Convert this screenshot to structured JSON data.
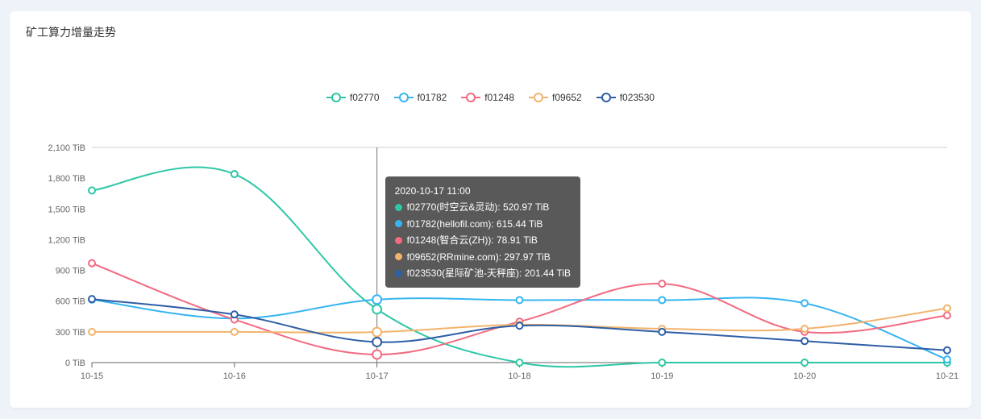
{
  "title": "矿工算力增量走势",
  "chart": {
    "type": "line",
    "background_color": "#ffffff",
    "grid_color": "#cccccc",
    "axis_text_color": "#666666",
    "y_unit": "TiB",
    "ylim": [
      0,
      2100
    ],
    "ytick_step": 300,
    "yticks": [
      "0 TiB",
      "300 TiB",
      "600 TiB",
      "900 TiB",
      "1,200 TiB",
      "1,500 TiB",
      "1,800 TiB",
      "2,100 TiB"
    ],
    "xticks": [
      "10-15",
      "10-16",
      "10-17",
      "10-18",
      "10-19",
      "10-20",
      "10-21"
    ],
    "marker_style": "ring",
    "marker_radius": 4,
    "line_width": 2,
    "series": [
      {
        "id": "f02770",
        "color": "#2ec7a6",
        "values": [
          1680,
          1840,
          521,
          0,
          0,
          0,
          0
        ]
      },
      {
        "id": "f01782",
        "color": "#36b5f0",
        "values": [
          615,
          430,
          615,
          610,
          610,
          580,
          30
        ]
      },
      {
        "id": "f01248",
        "color": "#f26b82",
        "values": [
          970,
          420,
          79,
          400,
          770,
          300,
          460
        ]
      },
      {
        "id": "f09652",
        "color": "#f2b36b",
        "values": [
          300,
          300,
          298,
          370,
          330,
          330,
          530
        ]
      },
      {
        "id": "f023530",
        "color": "#2e5ea6",
        "values": [
          620,
          470,
          201,
          360,
          300,
          210,
          120
        ]
      }
    ],
    "highlight_x_index": 2,
    "legend_position": "top-center",
    "legend_fontsize": 12,
    "tooltip_bg": "rgba(60,60,60,0.85)",
    "tooltip_text_color": "#ffffff"
  },
  "tooltip": {
    "header": "2020-10-17 11:00",
    "rows": [
      {
        "color": "#2ec7a6",
        "text": "f02770(时空云&灵动): 520.97 TiB"
      },
      {
        "color": "#36b5f0",
        "text": "f01782(hellofil.com): 615.44 TiB"
      },
      {
        "color": "#f26b82",
        "text": "f01248(智合云(ZH)): 78.91 TiB"
      },
      {
        "color": "#f2b36b",
        "text": "f09652(RRmine.com): 297.97 TiB"
      },
      {
        "color": "#2e5ea6",
        "text": "f023530(星际矿池-天秤座): 201.44 TiB"
      }
    ]
  }
}
